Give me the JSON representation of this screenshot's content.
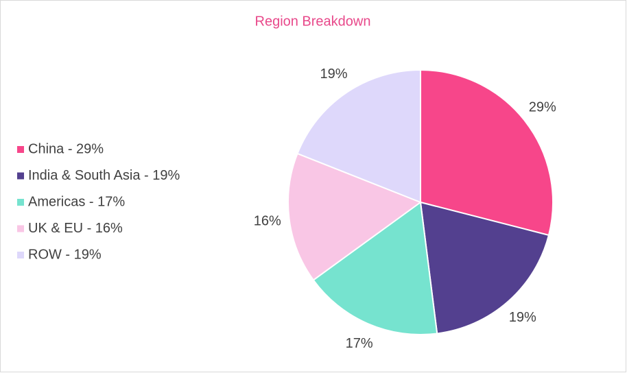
{
  "chart_data": {
    "type": "pie",
    "title": "Region Breakdown",
    "categories": [
      "China - 29%",
      "India & South Asia - 19%",
      "Americas - 17%",
      "UK & EU - 16%",
      "ROW - 19%"
    ],
    "values": [
      29,
      19,
      17,
      16,
      19
    ],
    "value_labels": [
      "29%",
      "19%",
      "17%",
      "16%",
      "19%"
    ],
    "colors": [
      "#f7468a",
      "#53408f",
      "#76e3cf",
      "#f9c6e5",
      "#ded8fb"
    ],
    "legend": "left"
  }
}
